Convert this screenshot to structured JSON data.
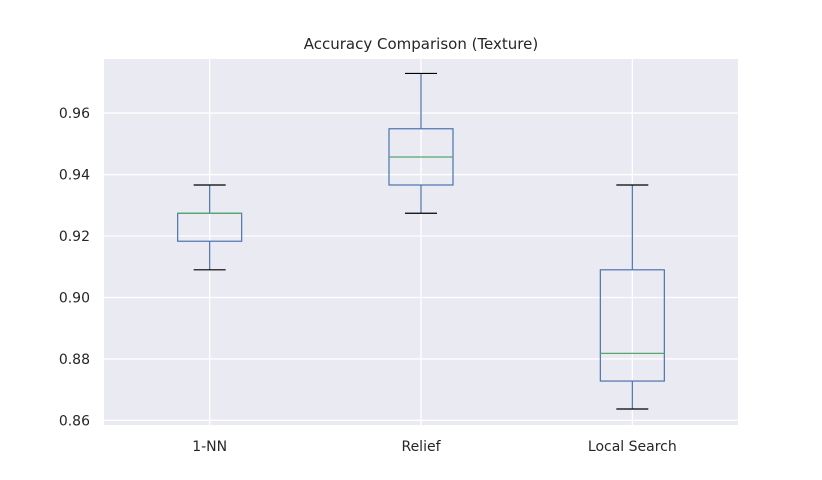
{
  "chart_data": {
    "type": "box",
    "title": "Accuracy Comparison (Texture)",
    "xlabel": "",
    "ylabel": "",
    "categories": [
      "1-NN",
      "Relief",
      "Local Search"
    ],
    "boxes": [
      {
        "whisker_low": 0.909,
        "q1": 0.9183,
        "median": 0.9274,
        "q3": 0.9274,
        "whisker_high": 0.9366
      },
      {
        "whisker_low": 0.9274,
        "q1": 0.9366,
        "median": 0.9457,
        "q3": 0.9549,
        "whisker_high": 0.9729
      },
      {
        "whisker_low": 0.8637,
        "q1": 0.8728,
        "median": 0.8818,
        "q3": 0.909,
        "whisker_high": 0.9366
      }
    ],
    "yticks": [
      0.86,
      0.88,
      0.9,
      0.92,
      0.94,
      0.96
    ],
    "ytick_labels": [
      "0.86",
      "0.88",
      "0.90",
      "0.92",
      "0.94",
      "0.96"
    ],
    "ylim": [
      0.8585,
      0.9776
    ],
    "grid": true,
    "colors": {
      "background": "#eaeaf2",
      "grid": "#ffffff",
      "box": "#4c72b0",
      "median": "#55a868",
      "cap": "#000000"
    }
  }
}
